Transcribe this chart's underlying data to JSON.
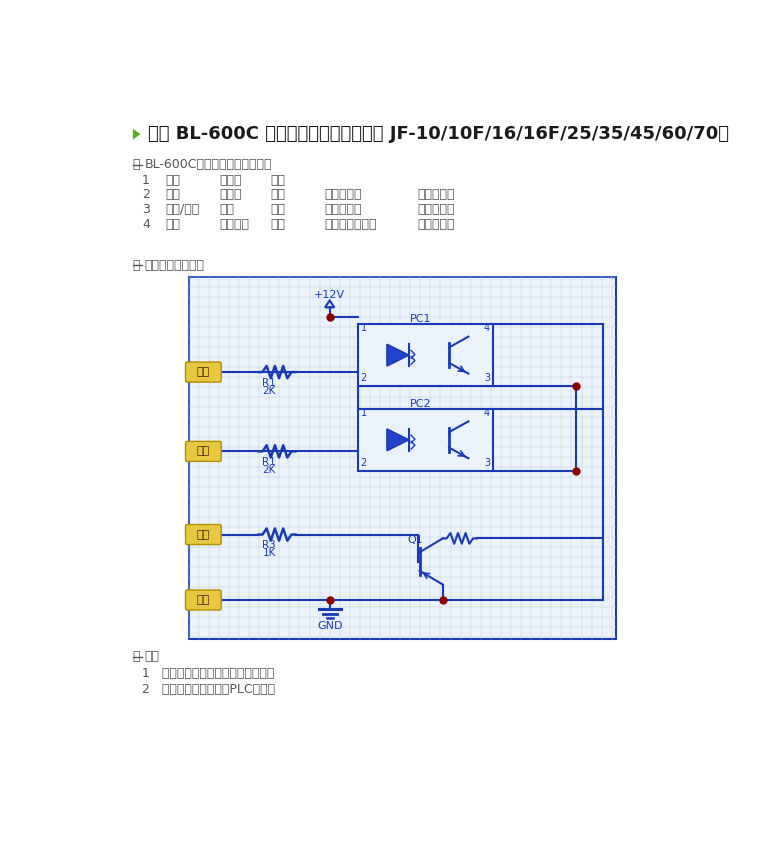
{
  "title": "电源 BL-600C 信号输出接线方式（适合 JF-10/10F/16/16F/25/35/45/60/70）",
  "section1_label": "一",
  "section1_text": "BL-600C电源后侧控制接口说明",
  "table_rows": [
    [
      "1",
      "黑线",
      "公共端",
      "电源",
      "",
      ""
    ],
    [
      "2",
      "蓝线",
      "正反向",
      "输入",
      "低电平反转",
      "高电平正转"
    ],
    [
      "3",
      "黄线/灰线",
      "启动",
      "输入",
      "低电平启动",
      "高电平停止"
    ],
    [
      "4",
      "棕线",
      "扭矩到达",
      "输出",
      "集电极开路输出",
      "拉电流输出"
    ]
  ],
  "section2_label": "二",
  "section2_text": "控制接口内部电路",
  "section3_label": "三",
  "section3_text": "链接",
  "link1": "1   电源前侧接口与电动螺丝刀连接。",
  "link2": "2   电源后侧控制接口与PLC连接。",
  "bg_color": "#ffffff",
  "text_color": "#555555",
  "circuit_line_color": "#1a3ab5",
  "grid_color": "#c0d0e0",
  "wire_label_bg": "#e8c840",
  "title_color": "#1a1a1a",
  "title_fontsize": 13,
  "body_fontsize": 9,
  "circuit_bg": "#ecf2fa"
}
